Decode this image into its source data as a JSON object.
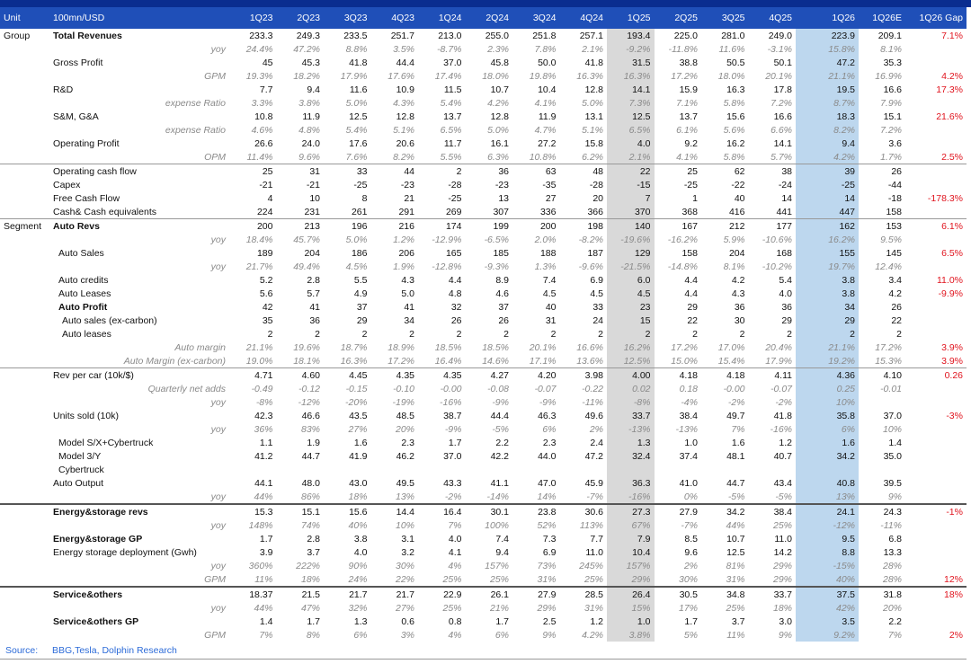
{
  "header": {
    "unit": "Unit",
    "label": "100mn/USD",
    "columns": [
      "1Q23",
      "2Q23",
      "3Q23",
      "4Q23",
      "1Q24",
      "2Q24",
      "3Q24",
      "4Q24",
      "1Q25",
      "2Q25",
      "3Q25",
      "4Q25",
      "1Q26",
      "1Q26E",
      "1Q26 Gap"
    ]
  },
  "sections": [
    {
      "rows": [
        {
          "unit": "Group",
          "label": "Total Revenues",
          "kind": "bold",
          "values": [
            "233.3",
            "249.3",
            "233.5",
            "251.7",
            "213.0",
            "255.0",
            "251.8",
            "257.1",
            "193.4",
            "225.0",
            "281.0",
            "249.0",
            "223.9",
            "209.1",
            "7.1%"
          ]
        },
        {
          "label": "yoy",
          "kind": "ratio",
          "values": [
            "24.4%",
            "47.2%",
            "8.8%",
            "3.5%",
            "-8.7%",
            "2.3%",
            "7.8%",
            "2.1%",
            "-9.2%",
            "-11.8%",
            "11.6%",
            "-3.1%",
            "15.8%",
            "8.1%",
            null
          ]
        },
        {
          "label": "Gross Profit",
          "kind": "plain",
          "values": [
            "45",
            "45.3",
            "41.8",
            "44.4",
            "37.0",
            "45.8",
            "50.0",
            "41.8",
            "31.5",
            "38.8",
            "50.5",
            "50.1",
            "47.2",
            "35.3",
            null
          ]
        },
        {
          "label": "GPM",
          "kind": "ratio",
          "values": [
            "19.3%",
            "18.2%",
            "17.9%",
            "17.6%",
            "17.4%",
            "18.0%",
            "19.8%",
            "16.3%",
            "16.3%",
            "17.2%",
            "18.0%",
            "20.1%",
            "21.1%",
            "16.9%",
            "4.2%"
          ]
        },
        {
          "label": "R&D",
          "kind": "plain",
          "values": [
            "7.7",
            "9.4",
            "11.6",
            "10.9",
            "11.5",
            "10.7",
            "10.4",
            "12.8",
            "14.1",
            "15.9",
            "16.3",
            "17.8",
            "19.5",
            "16.6",
            "17.3%"
          ]
        },
        {
          "label": "expense Ratio",
          "kind": "ratio",
          "values": [
            "3.3%",
            "3.8%",
            "5.0%",
            "4.3%",
            "5.4%",
            "4.2%",
            "4.1%",
            "5.0%",
            "7.3%",
            "7.1%",
            "5.8%",
            "7.2%",
            "8.7%",
            "7.9%",
            null
          ]
        },
        {
          "label": "S&M, G&A",
          "kind": "plain",
          "values": [
            "10.8",
            "11.9",
            "12.5",
            "12.8",
            "13.7",
            "12.8",
            "11.9",
            "13.1",
            "12.5",
            "13.7",
            "15.6",
            "16.6",
            "18.3",
            "15.1",
            "21.6%"
          ]
        },
        {
          "label": "expense Ratio",
          "kind": "ratio",
          "values": [
            "4.6%",
            "4.8%",
            "5.4%",
            "5.1%",
            "6.5%",
            "5.0%",
            "4.7%",
            "5.1%",
            "6.5%",
            "6.1%",
            "5.6%",
            "6.6%",
            "8.2%",
            "7.2%",
            null
          ]
        },
        {
          "label": "Operating Profit",
          "kind": "plain",
          "values": [
            "26.6",
            "24.0",
            "17.6",
            "20.6",
            "11.7",
            "16.1",
            "27.2",
            "15.8",
            "4.0",
            "9.2",
            "16.2",
            "14.1",
            "9.4",
            "3.6",
            null
          ]
        },
        {
          "label": "OPM",
          "kind": "ratio",
          "values": [
            "11.4%",
            "9.6%",
            "7.6%",
            "8.2%",
            "5.5%",
            "6.3%",
            "10.8%",
            "6.2%",
            "2.1%",
            "4.1%",
            "5.8%",
            "5.7%",
            "4.2%",
            "1.7%",
            "2.5%"
          ]
        }
      ]
    },
    {
      "rows": [
        {
          "label": "Operating cash flow",
          "kind": "plain",
          "values": [
            "25",
            "31",
            "33",
            "44",
            "2",
            "36",
            "63",
            "48",
            "22",
            "25",
            "62",
            "38",
            "39",
            "26",
            null
          ]
        },
        {
          "label": "Capex",
          "kind": "plain",
          "values": [
            "-21",
            "-21",
            "-25",
            "-23",
            "-28",
            "-23",
            "-35",
            "-28",
            "-15",
            "-25",
            "-22",
            "-24",
            "-25",
            "-44",
            null
          ]
        },
        {
          "label": "Free Cash Flow",
          "kind": "plain",
          "values": [
            "4",
            "10",
            "8",
            "21",
            "-25",
            "13",
            "27",
            "20",
            "7",
            "1",
            "40",
            "14",
            "14",
            "-18",
            "-178.3%"
          ]
        },
        {
          "label": "Cash& Cash equivalents",
          "kind": "plain",
          "values": [
            "224",
            "231",
            "261",
            "291",
            "269",
            "307",
            "336",
            "366",
            "370",
            "368",
            "416",
            "441",
            "447",
            "158",
            null
          ]
        }
      ]
    },
    {
      "rows": [
        {
          "unit": "Segment",
          "label": "Auto Revs",
          "kind": "bold",
          "values": [
            "200",
            "213",
            "196",
            "216",
            "174",
            "199",
            "200",
            "198",
            "140",
            "167",
            "212",
            "177",
            "162",
            "153",
            "6.1%"
          ]
        },
        {
          "label": "yoy",
          "kind": "ratio",
          "values": [
            "18.4%",
            "45.7%",
            "5.0%",
            "1.2%",
            "-12.9%",
            "-6.5%",
            "2.0%",
            "-8.2%",
            "-19.6%",
            "-16.2%",
            "5.9%",
            "-10.6%",
            "16.2%",
            "9.5%",
            null
          ]
        },
        {
          "label": "Auto Sales",
          "kind": "indent",
          "values": [
            "189",
            "204",
            "186",
            "206",
            "165",
            "185",
            "188",
            "187",
            "129",
            "158",
            "204",
            "168",
            "155",
            "145",
            "6.5%"
          ]
        },
        {
          "label": "yoy",
          "kind": "ratio",
          "values": [
            "21.7%",
            "49.4%",
            "4.5%",
            "1.9%",
            "-12.8%",
            "-9.3%",
            "1.3%",
            "-9.6%",
            "-21.5%",
            "-14.8%",
            "8.1%",
            "-10.2%",
            "19.7%",
            "12.4%",
            null
          ]
        },
        {
          "label": "Auto credits",
          "kind": "indent",
          "values": [
            "5.2",
            "2.8",
            "5.5",
            "4.3",
            "4.4",
            "8.9",
            "7.4",
            "6.9",
            "6.0",
            "4.4",
            "4.2",
            "5.4",
            "3.8",
            "3.4",
            "11.0%"
          ]
        },
        {
          "label": "Auto Leases",
          "kind": "indent",
          "values": [
            "5.6",
            "5.7",
            "4.9",
            "5.0",
            "4.8",
            "4.6",
            "4.5",
            "4.5",
            "4.5",
            "4.4",
            "4.3",
            "4.0",
            "3.8",
            "4.2",
            "-9.9%"
          ]
        },
        {
          "label": "Auto Profit",
          "kind": "bold indent",
          "values": [
            "42",
            "41",
            "37",
            "41",
            "32",
            "37",
            "40",
            "33",
            "23",
            "29",
            "36",
            "36",
            "34",
            "26",
            null
          ]
        },
        {
          "label": "Auto sales (ex-carbon)",
          "kind": "indent2",
          "values": [
            "35",
            "36",
            "29",
            "34",
            "26",
            "26",
            "31",
            "24",
            "15",
            "22",
            "30",
            "29",
            "29",
            "22",
            null
          ]
        },
        {
          "label": "Auto leases",
          "kind": "indent2",
          "values": [
            "2",
            "2",
            "2",
            "2",
            "2",
            "2",
            "2",
            "2",
            "2",
            "2",
            "2",
            "2",
            "2",
            "2",
            null
          ]
        },
        {
          "label": "Auto margin",
          "kind": "ratio",
          "values": [
            "21.1%",
            "19.6%",
            "18.7%",
            "18.9%",
            "18.5%",
            "18.5%",
            "20.1%",
            "16.6%",
            "16.2%",
            "17.2%",
            "17.0%",
            "20.4%",
            "21.1%",
            "17.2%",
            "3.9%"
          ]
        },
        {
          "label": "Auto Margin (ex-carbon)",
          "kind": "ratio",
          "values": [
            "19.0%",
            "18.1%",
            "16.3%",
            "17.2%",
            "16.4%",
            "14.6%",
            "17.1%",
            "13.6%",
            "12.5%",
            "15.0%",
            "15.4%",
            "17.9%",
            "19.2%",
            "15.3%",
            "3.9%"
          ]
        }
      ]
    },
    {
      "rows": [
        {
          "label": "Rev per car (10k/$)",
          "kind": "plain",
          "values": [
            "4.71",
            "4.60",
            "4.45",
            "4.35",
            "4.35",
            "4.27",
            "4.20",
            "3.98",
            "4.00",
            "4.18",
            "4.18",
            "4.11",
            "4.36",
            "4.10",
            "0.26"
          ]
        },
        {
          "label": "Quarterly net adds",
          "kind": "ratio",
          "values": [
            "-0.49",
            "-0.12",
            "-0.15",
            "-0.10",
            "-0.00",
            "-0.08",
            "-0.07",
            "-0.22",
            "0.02",
            "0.18",
            "-0.00",
            "-0.07",
            "0.25",
            "-0.01",
            null
          ]
        },
        {
          "label": "yoy",
          "kind": "ratio",
          "values": [
            "-8%",
            "-12%",
            "-20%",
            "-19%",
            "-16%",
            "-9%",
            "-9%",
            "-11%",
            "-8%",
            "-4%",
            "-2%",
            "-2%",
            "10%",
            null,
            null
          ]
        },
        {
          "label": "Units sold (10k)",
          "kind": "plain",
          "values": [
            "42.3",
            "46.6",
            "43.5",
            "48.5",
            "38.7",
            "44.4",
            "46.3",
            "49.6",
            "33.7",
            "38.4",
            "49.7",
            "41.8",
            "35.8",
            "37.0",
            "-3%"
          ]
        },
        {
          "label": "yoy",
          "kind": "ratio",
          "values": [
            "36%",
            "83%",
            "27%",
            "20%",
            "-9%",
            "-5%",
            "6%",
            "2%",
            "-13%",
            "-13%",
            "7%",
            "-16%",
            "6%",
            "10%",
            null
          ]
        },
        {
          "label": "Model S/X+Cybertruck",
          "kind": "indent",
          "values": [
            "1.1",
            "1.9",
            "1.6",
            "2.3",
            "1.7",
            "2.2",
            "2.3",
            "2.4",
            "1.3",
            "1.0",
            "1.6",
            "1.2",
            "1.6",
            "1.4",
            null
          ]
        },
        {
          "label": "Model 3/Y",
          "kind": "indent",
          "values": [
            "41.2",
            "44.7",
            "41.9",
            "46.2",
            "37.0",
            "42.2",
            "44.0",
            "47.2",
            "32.4",
            "37.4",
            "48.1",
            "40.7",
            "34.2",
            "35.0",
            null
          ]
        },
        {
          "label": "Cybertruck",
          "kind": "indent",
          "values": [
            null,
            null,
            null,
            null,
            null,
            null,
            null,
            null,
            null,
            null,
            null,
            null,
            null,
            null,
            null
          ]
        },
        {
          "label": "Auto Output",
          "kind": "plain",
          "values": [
            "44.1",
            "48.0",
            "43.0",
            "49.5",
            "43.3",
            "41.1",
            "47.0",
            "45.9",
            "36.3",
            "41.0",
            "44.7",
            "43.4",
            "40.8",
            "39.5",
            null
          ]
        },
        {
          "label": "yoy",
          "kind": "ratio",
          "values": [
            "44%",
            "86%",
            "18%",
            "13%",
            "-2%",
            "-14%",
            "14%",
            "-7%",
            "-16%",
            "0%",
            "-5%",
            "-5%",
            "13%",
            "9%",
            null
          ]
        }
      ]
    },
    {
      "rows": [
        {
          "label": "Energy&storage revs",
          "kind": "bold",
          "values": [
            "15.3",
            "15.1",
            "15.6",
            "14.4",
            "16.4",
            "30.1",
            "23.8",
            "30.6",
            "27.3",
            "27.9",
            "34.2",
            "38.4",
            "24.1",
            "24.3",
            "-1%"
          ]
        },
        {
          "label": "yoy",
          "kind": "ratio",
          "values": [
            "148%",
            "74%",
            "40%",
            "10%",
            "7%",
            "100%",
            "52%",
            "113%",
            "67%",
            "-7%",
            "44%",
            "25%",
            "-12%",
            "-11%",
            null
          ]
        },
        {
          "label": "Energy&storage GP",
          "kind": "bold",
          "values": [
            "1.7",
            "2.8",
            "3.8",
            "3.1",
            "4.0",
            "7.4",
            "7.3",
            "7.7",
            "7.9",
            "8.5",
            "10.7",
            "11.0",
            "9.5",
            "6.8",
            null
          ]
        },
        {
          "label": "Energy storage deployment (Gwh)",
          "kind": "plain",
          "values": [
            "3.9",
            "3.7",
            "4.0",
            "3.2",
            "4.1",
            "9.4",
            "6.9",
            "11.0",
            "10.4",
            "9.6",
            "12.5",
            "14.2",
            "8.8",
            "13.3",
            null
          ]
        },
        {
          "label": "yoy",
          "kind": "ratio",
          "values": [
            "360%",
            "222%",
            "90%",
            "30%",
            "4%",
            "157%",
            "73%",
            "245%",
            "157%",
            "2%",
            "81%",
            "29%",
            "-15%",
            "28%",
            null
          ]
        },
        {
          "label": "GPM",
          "kind": "ratio",
          "values": [
            "11%",
            "18%",
            "24%",
            "22%",
            "25%",
            "25%",
            "31%",
            "25%",
            "29%",
            "30%",
            "31%",
            "29%",
            "40%",
            "28%",
            "12%"
          ]
        }
      ]
    },
    {
      "rows": [
        {
          "label": "Service&others",
          "kind": "bold",
          "values": [
            "18.37",
            "21.5",
            "21.7",
            "21.7",
            "22.9",
            "26.1",
            "27.9",
            "28.5",
            "26.4",
            "30.5",
            "34.8",
            "33.7",
            "37.5",
            "31.8",
            "18%"
          ]
        },
        {
          "label": "yoy",
          "kind": "ratio",
          "values": [
            "44%",
            "47%",
            "32%",
            "27%",
            "25%",
            "21%",
            "29%",
            "31%",
            "15%",
            "17%",
            "25%",
            "18%",
            "42%",
            "20%",
            null
          ]
        },
        {
          "label": "Service&others GP",
          "kind": "bold",
          "values": [
            "1.4",
            "1.7",
            "1.3",
            "0.6",
            "0.8",
            "1.7",
            "2.5",
            "1.2",
            "1.0",
            "1.7",
            "3.7",
            "3.0",
            "3.5",
            "2.2",
            null
          ]
        },
        {
          "label": "GPM",
          "kind": "ratio",
          "values": [
            "7%",
            "8%",
            "6%",
            "3%",
            "4%",
            "6%",
            "9%",
            "4.2%",
            "3.8%",
            "5%",
            "11%",
            "9%",
            "9.2%",
            "7%",
            "2%"
          ]
        }
      ]
    }
  ],
  "footer": {
    "label": "Source:",
    "text": "BBG,Tesla, Dolphin Research"
  }
}
